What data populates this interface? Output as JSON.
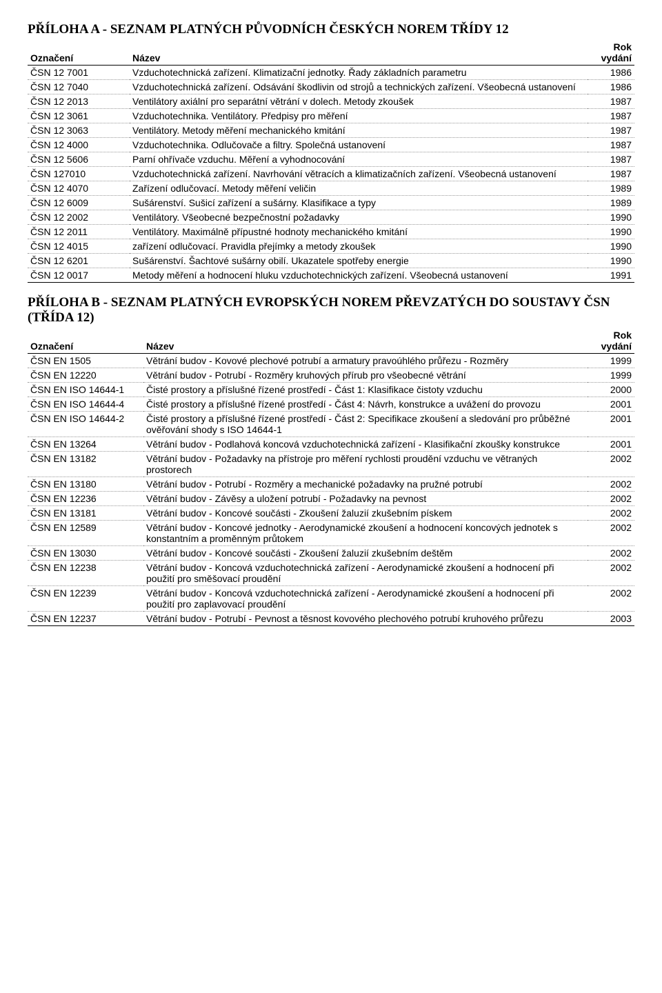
{
  "appendixA": {
    "title": "PŘÍLOHA A - SEZNAM PLATNÝCH PŮVODNÍCH ČESKÝCH NOREM TŘÍDY 12",
    "headers": {
      "code": "Označení",
      "name": "Název",
      "year": "Rok vydání"
    },
    "rows": [
      {
        "code": "ČSN 12 7001",
        "name": "Vzduchotechnická zařízení. Klimatizační jednotky. Řady základních parametru",
        "year": "1986"
      },
      {
        "code": "ČSN 12 7040",
        "name": "Vzduchotechnická zařízení. Odsávání škodlivin od strojů a technických zařízení. Všeobecná ustanovení",
        "year": "1986"
      },
      {
        "code": "ČSN 12 2013",
        "name": "Ventilátory axiální pro separátní větrání v dolech. Metody zkoušek",
        "year": "1987"
      },
      {
        "code": "ČSN 12 3061",
        "name": "Vzduchotechnika. Ventilátory. Předpisy pro měření",
        "year": "1987"
      },
      {
        "code": "ČSN 12 3063",
        "name": "Ventilátory. Metody měření mechanického kmitání",
        "year": "1987"
      },
      {
        "code": "ČSN 12 4000",
        "name": "Vzduchotechnika. Odlučovače a filtry. Společná ustanovení",
        "year": "1987"
      },
      {
        "code": "ČSN 12 5606",
        "name": "Parní ohřívače vzduchu. Měření a vyhodnocování",
        "year": "1987"
      },
      {
        "code": "ČSN 127010",
        "name": "Vzduchotechnická zařízení. Navrhování větracích a klimatizačních zařízení. Všeobecná ustanovení",
        "year": "1987"
      },
      {
        "code": "ČSN 12 4070",
        "name": "Zařízení odlučovací. Metody měření veličin",
        "year": "1989"
      },
      {
        "code": "ČSN 12 6009",
        "name": "Sušárenství. Sušicí zařízení a sušárny. Klasifikace a typy",
        "year": "1989"
      },
      {
        "code": "ČSN 12 2002",
        "name": "Ventilátory. Všeobecné bezpečnostní požadavky",
        "year": "1990"
      },
      {
        "code": "ČSN 12 2011",
        "name": "Ventilátory. Maximálně přípustné hodnoty mechanického kmitání",
        "year": "1990"
      },
      {
        "code": "ČSN 12 4015",
        "name": "zařízení odlučovací. Pravidla přejímky a metody zkoušek",
        "year": "1990"
      },
      {
        "code": "ČSN 12 6201",
        "name": "Sušárenství. Šachtové sušárny obilí. Ukazatele spotřeby energie",
        "year": "1990"
      },
      {
        "code": "ČSN 12 0017",
        "name": "Metody měření a hodnocení hluku vzduchotechnických zařízení. Všeobecná ustanovení",
        "year": "1991"
      }
    ]
  },
  "appendixB": {
    "title": "PŘÍLOHA B - SEZNAM PLATNÝCH EVROPSKÝCH NOREM PŘEVZATÝCH DO SOUSTAVY ČSN (TŘÍDA 12)",
    "headers": {
      "code": "Označení",
      "name": "Název",
      "year": "Rok vydání"
    },
    "rows": [
      {
        "code": "ČSN EN 1505",
        "name": "Větrání budov - Kovové plechové potrubí a armatury pravoúhlého průřezu - Rozměry",
        "year": "1999"
      },
      {
        "code": "ČSN EN 12220",
        "name": "Větrání budov - Potrubí - Rozměry kruhových přírub pro všeobecné větrání",
        "year": "1999"
      },
      {
        "code": "ČSN EN ISO 14644-1",
        "name": "Čisté prostory a příslušné řízené prostředí - Část 1: Klasifikace čistoty vzduchu",
        "year": "2000"
      },
      {
        "code": "ČSN EN ISO 14644-4",
        "name": "Čisté prostory a příslušné řízené prostředí - Část 4: Návrh, konstrukce a uvážení do provozu",
        "year": "2001"
      },
      {
        "code": "ČSN EN ISO 14644-2",
        "name": "Čisté prostory a příslušné řízené prostředí - Část 2: Specifikace zkoušení a sledování pro průběžné ověřování shody s ISO 14644-1",
        "year": "2001"
      },
      {
        "code": "ČSN EN 13264",
        "name": "Větrání budov - Podlahová koncová vzduchotechnická zařízení - Klasifikační zkoušky konstrukce",
        "year": "2001"
      },
      {
        "code": "ČSN EN 13182",
        "name": "Větrání budov - Požadavky na přístroje pro měření rychlosti proudění vzduchu ve větraných prostorech",
        "year": "2002"
      },
      {
        "code": "ČSN EN 13180",
        "name": "Větrání budov - Potrubí - Rozměry a mechanické požadavky na pružné potrubí",
        "year": "2002"
      },
      {
        "code": "ČSN EN 12236",
        "name": "Větrání budov - Závěsy a uložení potrubí - Požadavky na pevnost",
        "year": "2002"
      },
      {
        "code": "ČSN EN 13181",
        "name": "Větrání budov - Koncové součásti - Zkoušení žaluzií zkušebním pískem",
        "year": "2002"
      },
      {
        "code": "ČSN EN 12589",
        "name": "Větrání budov - Koncové jednotky - Aerodynamické zkoušení a hodnocení koncových jednotek s konstantním a proměnným průtokem",
        "year": "2002"
      },
      {
        "code": "ČSN EN 13030",
        "name": "Větrání budov - Koncové součásti - Zkoušení žaluzií zkušebním deštěm",
        "year": "2002"
      },
      {
        "code": "ČSN EN 12238",
        "name": "Větrání budov - Koncová vzduchotechnická zařízení - Aerodynamické zkoušení a hodnocení při použití pro směšovací proudění",
        "year": "2002"
      },
      {
        "code": "ČSN EN 12239",
        "name": "Větrání budov - Koncová vzduchotechnická zařízení - Aerodynamické zkoušení a hodnocení při použití pro zaplavovací proudění",
        "year": "2002"
      },
      {
        "code": "ČSN EN 12237",
        "name": "Větrání budov - Potrubí - Pevnost a těsnost kovového plechového potrubí kruhového průřezu",
        "year": "2003"
      }
    ]
  }
}
